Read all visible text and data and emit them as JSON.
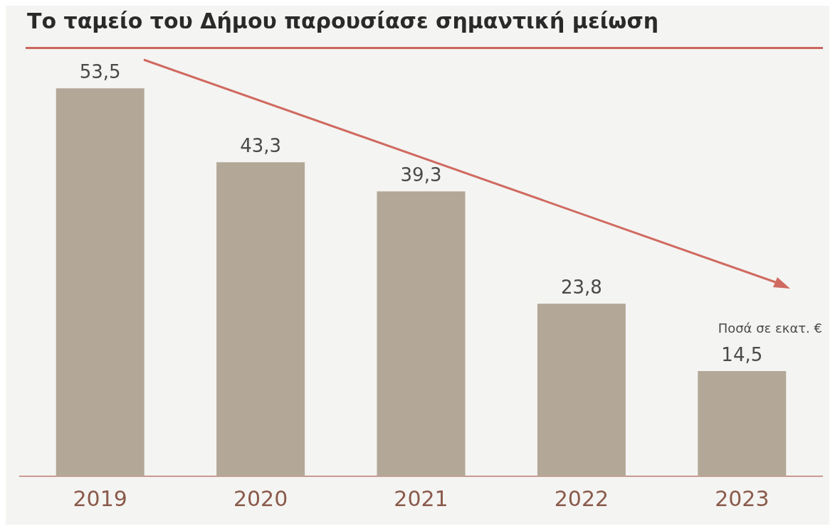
{
  "chart_data": {
    "type": "bar",
    "title": "Το ταμείο του Δήμου παρουσίασε σημαντική μείωση",
    "categories": [
      "2019",
      "2020",
      "2021",
      "2022",
      "2023"
    ],
    "values": [
      53.5,
      43.3,
      39.3,
      23.8,
      14.5
    ],
    "color": "#b3a797",
    "value_labels": [
      "53,5",
      "43,3",
      "39,3",
      "23,8",
      "14,5"
    ],
    "tick_labels": "x",
    "grid": false,
    "legend": false,
    "annotations": [
      "Ποσά σε εκατ. €"
    ]
  }
}
